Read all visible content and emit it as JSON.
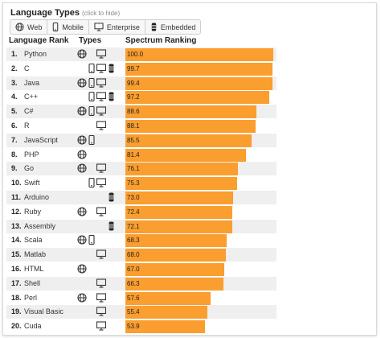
{
  "header": {
    "title": "Language Types",
    "hint": "(click to hide)"
  },
  "filters": [
    {
      "label": "Web",
      "icon": "globe-icon"
    },
    {
      "label": "Mobile",
      "icon": "phone-icon"
    },
    {
      "label": "Enterprise",
      "icon": "monitor-icon"
    },
    {
      "label": "Embedded",
      "icon": "chip-icon"
    }
  ],
  "columns": {
    "rank": "Language Rank",
    "types": "Types",
    "spectrum": "Spectrum Ranking"
  },
  "colors": {
    "bar": "#fa9e2f",
    "row_alt": "#efefef"
  },
  "rows": [
    {
      "rank": "1.",
      "name": "Python",
      "score": 100.0,
      "score_label": "100.0",
      "types": [
        "web",
        "enterprise"
      ]
    },
    {
      "rank": "2.",
      "name": "C",
      "score": 99.7,
      "score_label": "99.7",
      "types": [
        "mobile",
        "enterprise",
        "embedded"
      ]
    },
    {
      "rank": "3.",
      "name": "Java",
      "score": 99.4,
      "score_label": "99.4",
      "types": [
        "web",
        "mobile",
        "enterprise"
      ]
    },
    {
      "rank": "4.",
      "name": "C++",
      "score": 97.2,
      "score_label": "97.2",
      "types": [
        "mobile",
        "enterprise",
        "embedded"
      ]
    },
    {
      "rank": "5.",
      "name": "C#",
      "score": 88.6,
      "score_label": "88.6",
      "types": [
        "web",
        "mobile",
        "enterprise"
      ]
    },
    {
      "rank": "6.",
      "name": "R",
      "score": 88.1,
      "score_label": "88.1",
      "types": [
        "enterprise"
      ]
    },
    {
      "rank": "7.",
      "name": "JavaScript",
      "score": 85.5,
      "score_label": "85.5",
      "types": [
        "web",
        "mobile"
      ]
    },
    {
      "rank": "8.",
      "name": "PHP",
      "score": 81.4,
      "score_label": "81.4",
      "types": [
        "web"
      ]
    },
    {
      "rank": "9.",
      "name": "Go",
      "score": 76.1,
      "score_label": "76.1",
      "types": [
        "web",
        "enterprise"
      ]
    },
    {
      "rank": "10.",
      "name": "Swift",
      "score": 75.3,
      "score_label": "75.3",
      "types": [
        "mobile",
        "enterprise"
      ]
    },
    {
      "rank": "11.",
      "name": "Arduino",
      "score": 73.0,
      "score_label": "73.0",
      "types": [
        "embedded"
      ]
    },
    {
      "rank": "12.",
      "name": "Ruby",
      "score": 72.4,
      "score_label": "72.4",
      "types": [
        "web",
        "enterprise"
      ]
    },
    {
      "rank": "13.",
      "name": "Assembly",
      "score": 72.1,
      "score_label": "72.1",
      "types": [
        "embedded"
      ]
    },
    {
      "rank": "14.",
      "name": "Scala",
      "score": 68.3,
      "score_label": "68.3",
      "types": [
        "web",
        "mobile"
      ]
    },
    {
      "rank": "15.",
      "name": "Matlab",
      "score": 68.0,
      "score_label": "68.0",
      "types": [
        "enterprise"
      ]
    },
    {
      "rank": "16.",
      "name": "HTML",
      "score": 67.0,
      "score_label": "67.0",
      "types": [
        "web"
      ]
    },
    {
      "rank": "17.",
      "name": "Shell",
      "score": 66.3,
      "score_label": "66.3",
      "types": [
        "enterprise"
      ]
    },
    {
      "rank": "18.",
      "name": "Perl",
      "score": 57.6,
      "score_label": "57.6",
      "types": [
        "web",
        "enterprise"
      ]
    },
    {
      "rank": "19.",
      "name": "Visual Basic",
      "score": 55.4,
      "score_label": "55.4",
      "types": [
        "enterprise"
      ]
    },
    {
      "rank": "20.",
      "name": "Cuda",
      "score": 53.9,
      "score_label": "53.9",
      "types": [
        "enterprise"
      ]
    }
  ]
}
